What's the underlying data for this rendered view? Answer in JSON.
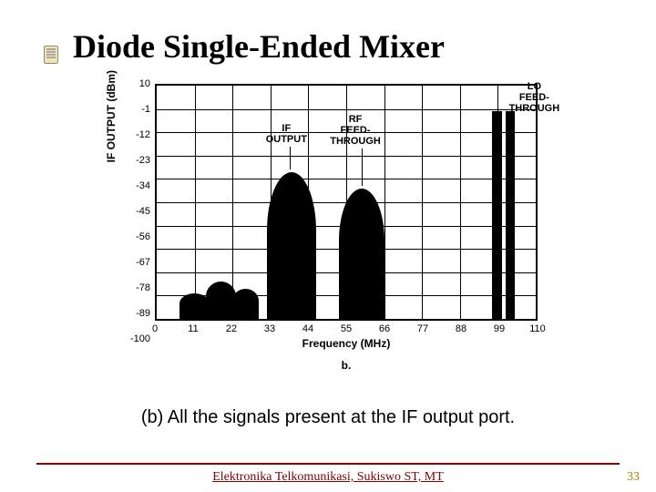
{
  "title": "Diode Single-Ended Mixer",
  "caption": "(b) All the signals present at the IF output port.",
  "footer": "Elektronika Telkomunikasi, Sukiswo ST, MT",
  "page": "33",
  "chart": {
    "type": "bar",
    "ylabel": "IF OUTPUT (dBm)",
    "xlabel": "Frequency (MHz)",
    "yticks": [
      "10",
      "-1",
      "-12",
      "-23",
      "-34",
      "-45",
      "-56",
      "-67",
      "-78",
      "-89",
      "-100"
    ],
    "xticks": [
      "0",
      "11",
      "22",
      "33",
      "44",
      "55",
      "66",
      "77",
      "88",
      "99",
      "110"
    ],
    "sublabel": "b.",
    "ylim": [
      -100,
      10
    ],
    "xlim": [
      0,
      110
    ],
    "grid_color": "#000000",
    "background_color": "#ffffff",
    "ann_if": "IF\nOUTPUT",
    "ann_rf": "RF\nFEED-\nTHROUGH",
    "ann_lo": "LO\nFEED-\nTHROUGH",
    "signals": [
      {
        "name": "if-output",
        "center_mhz": 39,
        "top_dbm": -30,
        "width_mhz": 14,
        "shape": "lobe"
      },
      {
        "name": "rf-feedthrough",
        "center_mhz": 59,
        "top_dbm": -38,
        "width_mhz": 12,
        "shape": "lobe"
      },
      {
        "name": "lo-feedthrough",
        "center_mhz": 100,
        "top_dbm": -2,
        "width_mhz": 5,
        "shape": "spike"
      }
    ],
    "noise_floor": [
      {
        "center_mhz": 10,
        "top_dbm": -88,
        "width_mhz": 8
      },
      {
        "center_mhz": 18,
        "top_dbm": -82,
        "width_mhz": 8
      },
      {
        "center_mhz": 26,
        "top_dbm": -85,
        "width_mhz": 6
      }
    ],
    "label_fontsize": 12,
    "tick_fontsize": 11
  }
}
